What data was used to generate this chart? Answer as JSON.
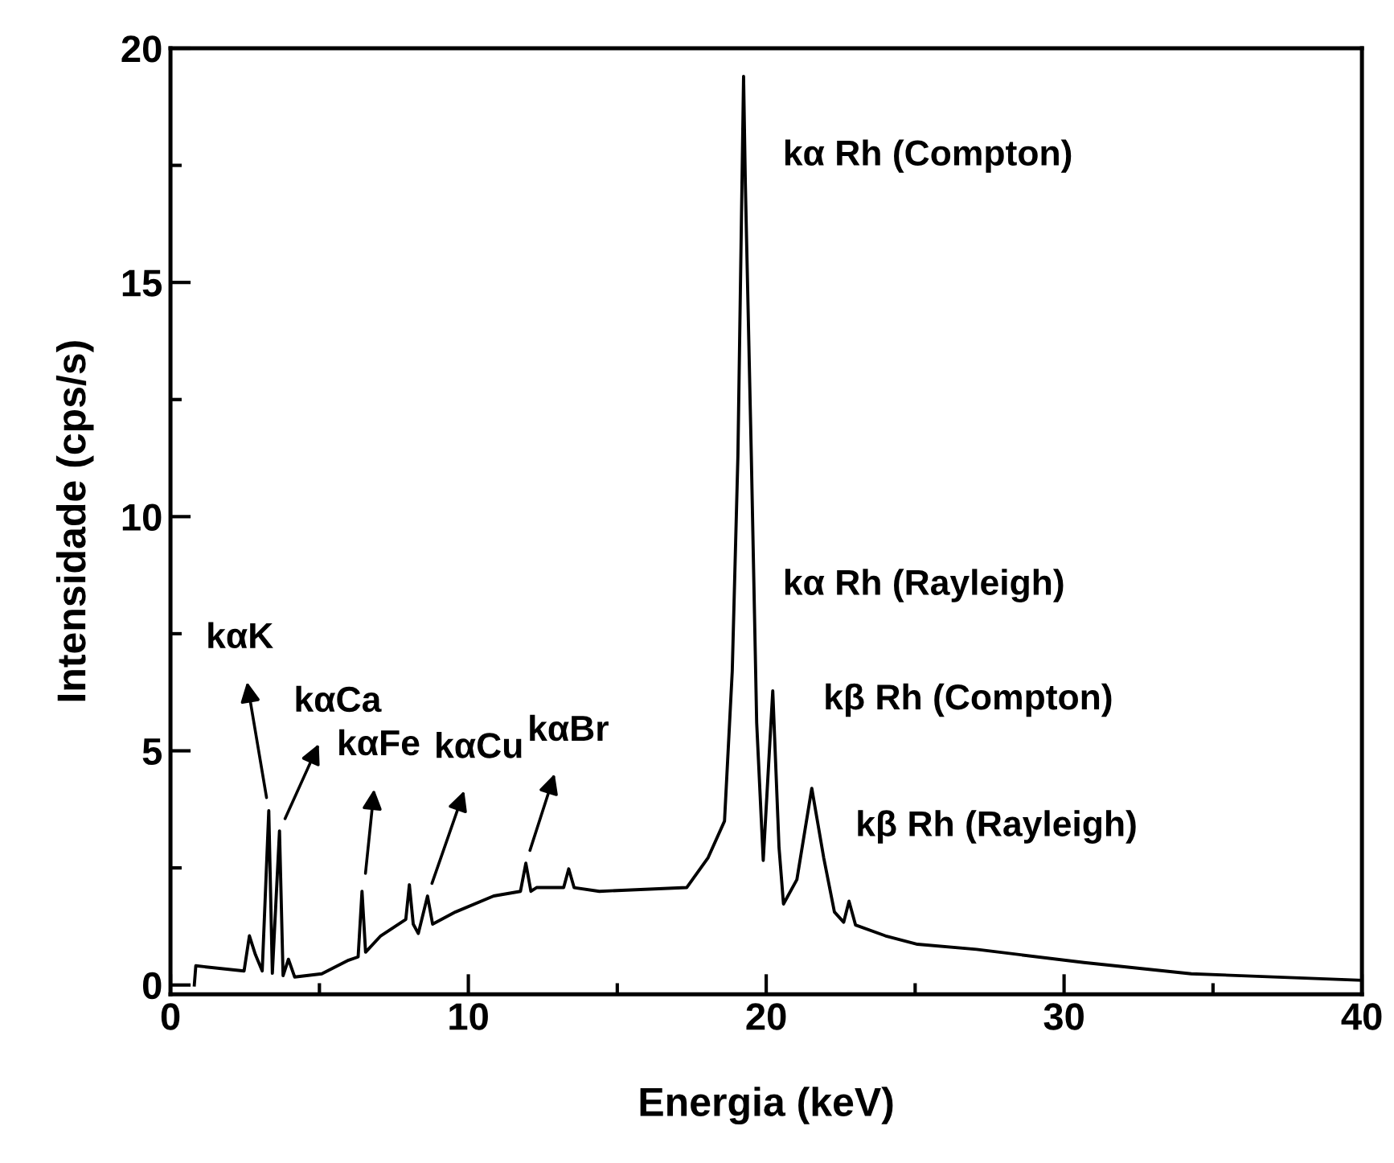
{
  "chart_data": {
    "type": "line",
    "xlabel": "Energia (keV)",
    "ylabel": "Intensidade (cps/s)",
    "xlim": [
      0,
      40
    ],
    "ylim": [
      -0.2,
      20
    ],
    "xticks": [
      0,
      {
        "value": 5,
        "label": null
      },
      10,
      {
        "value": 15,
        "label": null
      },
      20,
      {
        "value": 25,
        "label": null
      },
      30,
      {
        "value": 35,
        "label": null
      },
      40
    ],
    "yticks": [
      0,
      {
        "value": 2.5,
        "label": null
      },
      5,
      {
        "value": 7.5,
        "label": null
      },
      10,
      {
        "value": 12.5,
        "label": null
      },
      15,
      {
        "value": 17.5,
        "label": null
      },
      20
    ],
    "grid": false,
    "series": [
      {
        "color": "#000000",
        "x": [
          0.8,
          0.85,
          2.47,
          2.65,
          2.85,
          3.08,
          3.3,
          3.42,
          3.66,
          3.78,
          3.96,
          4.17,
          5.08,
          5.98,
          6.3,
          6.43,
          6.55,
          7.06,
          7.9,
          8.02,
          8.15,
          8.32,
          8.63,
          8.8,
          9.57,
          10.85,
          11.75,
          11.93,
          12.1,
          12.29,
          13.2,
          13.37,
          13.55,
          14.4,
          17.33,
          18.05,
          18.6,
          18.86,
          19.05,
          19.24,
          19.3,
          19.5,
          19.68,
          19.9,
          20.22,
          20.43,
          20.58,
          21.03,
          21.53,
          21.93,
          22.29,
          22.6,
          22.78,
          23.0,
          24.0,
          25.08,
          27.06,
          30.67,
          34.27,
          40.0
        ],
        "values": [
          0,
          0.41,
          0.3,
          1.05,
          0.65,
          0.3,
          3.72,
          0.25,
          3.29,
          0.2,
          0.55,
          0.17,
          0.24,
          0.53,
          0.6,
          2.0,
          0.7,
          1.05,
          1.4,
          2.14,
          1.3,
          1.1,
          1.9,
          1.3,
          1.56,
          1.9,
          2.0,
          2.6,
          2.0,
          2.08,
          2.08,
          2.48,
          2.08,
          2.0,
          2.08,
          2.72,
          3.5,
          6.7,
          11.3,
          19.4,
          17.1,
          11.3,
          5.6,
          2.66,
          6.28,
          2.94,
          1.73,
          2.25,
          4.2,
          2.72,
          1.56,
          1.34,
          1.79,
          1.28,
          1.05,
          0.87,
          0.76,
          0.48,
          0.24,
          0.1
        ]
      }
    ],
    "annotations": [
      {
        "text": "kαK",
        "x": 3.3,
        "y": 3.72
      },
      {
        "text": "kαCa",
        "x": 3.66,
        "y": 3.29
      },
      {
        "text": "kαFe",
        "x": 6.5,
        "y": 2.1
      },
      {
        "text": "kαCu",
        "x": 8.63,
        "y": 1.9
      },
      {
        "text": "kαBr",
        "x": 11.93,
        "y": 2.6
      },
      "kα Rh (Compton)",
      "kα Rh (Rayleigh)",
      "kβ Rh (Compton)",
      "kβ Rh (Rayleigh)"
    ]
  }
}
